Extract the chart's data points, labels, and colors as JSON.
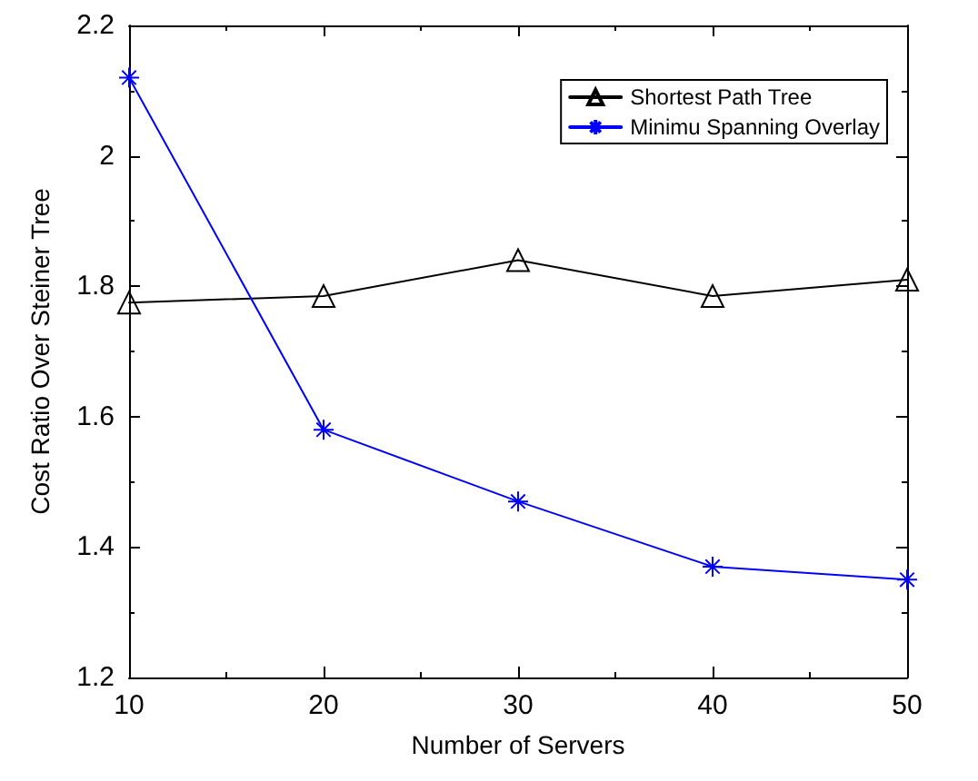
{
  "chart_data": {
    "type": "line",
    "xlabel": "Number of Servers",
    "ylabel": "Cost Ratio Over Steiner Tree",
    "x": [
      10,
      20,
      30,
      40,
      50
    ],
    "series": [
      {
        "name": "Shortest Path Tree",
        "color": "#000000",
        "marker": "triangle",
        "values": [
          1.775,
          1.785,
          1.84,
          1.785,
          1.81
        ]
      },
      {
        "name": "Minimu Spanning Overlay",
        "color": "#0000ff",
        "marker": "cross",
        "values": [
          2.12,
          1.58,
          1.47,
          1.37,
          1.35
        ]
      }
    ],
    "xlim": [
      10,
      50
    ],
    "xticks": [
      10,
      20,
      30,
      40,
      50
    ],
    "ylim": [
      1.2,
      2.2
    ],
    "yticks": [
      1.2,
      1.4,
      1.6,
      1.8,
      2,
      2.2
    ],
    "grid": false,
    "legend": "top right",
    "line_style": "solid"
  }
}
